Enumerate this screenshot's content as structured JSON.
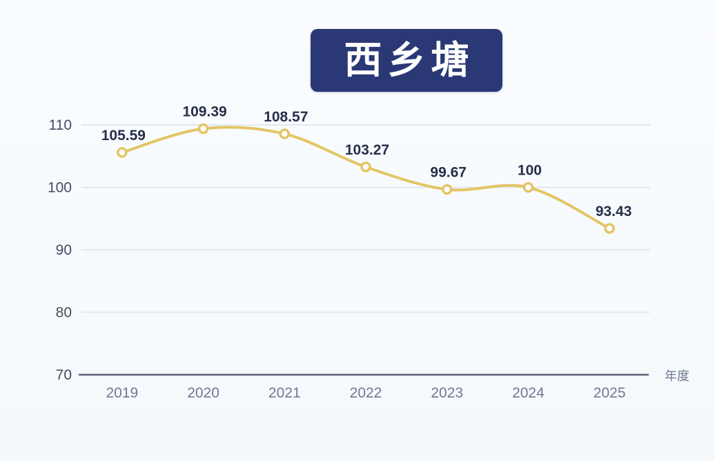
{
  "page": {
    "background": "#f7fafd"
  },
  "chart_data": {
    "type": "line",
    "title": "西乡塘",
    "categories": [
      "2019",
      "2020",
      "2021",
      "2022",
      "2023",
      "2024",
      "2025"
    ],
    "values": [
      105.59,
      109.39,
      108.57,
      103.27,
      99.67,
      100,
      93.43
    ],
    "labels": [
      "105.59",
      "109.39",
      "108.57",
      "103.27",
      "99.67",
      "100",
      "93.43"
    ],
    "xlabel": "年度",
    "ylabel": "",
    "ylim": [
      70,
      115
    ],
    "yticks": [
      70,
      80,
      90,
      100,
      110
    ],
    "grid": true,
    "legend": "none",
    "smooth": true,
    "colors": {
      "line": "#e3c565",
      "marker_fill": "#ffffff",
      "marker_stroke": "#e3c565",
      "title_bg": "#2b3876",
      "title_text": "#ffffff",
      "data_label": "#262f49",
      "y_tick_label": "#434c63",
      "x_tick_label": "#6e7892",
      "gridline": "#e4e7ee",
      "axis_line": "#596178",
      "background": "#f7fafd"
    }
  }
}
